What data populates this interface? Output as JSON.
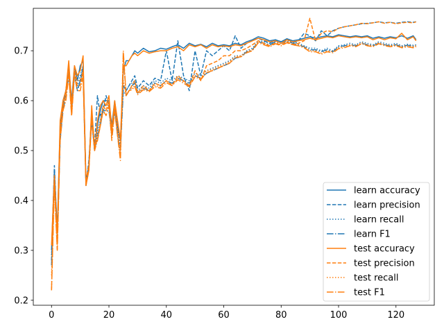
{
  "chart_data": {
    "type": "line",
    "title": "",
    "xlabel": "",
    "ylabel": "",
    "xlim": [
      -6.35,
      133.35
    ],
    "ylim": [
      0.19,
      0.785
    ],
    "xticks": [
      0,
      20,
      40,
      60,
      80,
      100,
      120
    ],
    "yticks": [
      0.2,
      0.3,
      0.4,
      0.5,
      0.6,
      0.7
    ],
    "grid": false,
    "legend_position": "lower-right",
    "colors": {
      "learn": "#1f77b4",
      "test": "#ff7f0e",
      "axes": "#000000",
      "background": "#ffffff"
    },
    "x": [
      0,
      1,
      2,
      3,
      4,
      5,
      6,
      7,
      8,
      9,
      10,
      11,
      12,
      13,
      14,
      15,
      16,
      17,
      18,
      19,
      20,
      21,
      22,
      23,
      24,
      25,
      26,
      27,
      28,
      29,
      30,
      32,
      34,
      36,
      38,
      40,
      42,
      44,
      46,
      48,
      50,
      52,
      54,
      56,
      58,
      60,
      62,
      64,
      66,
      68,
      70,
      72,
      74,
      76,
      78,
      80,
      82,
      84,
      86,
      88,
      90,
      92,
      94,
      96,
      98,
      100,
      102,
      104,
      106,
      108,
      110,
      112,
      114,
      116,
      118,
      120,
      122,
      124,
      126,
      127
    ],
    "series": [
      {
        "name": "learn accuracy",
        "dash": "solid",
        "color": "#1f77b4",
        "values": [
          0.3,
          0.46,
          0.34,
          0.55,
          0.6,
          0.62,
          0.67,
          0.6,
          0.67,
          0.64,
          0.67,
          0.68,
          0.44,
          0.47,
          0.58,
          0.5,
          0.55,
          0.58,
          0.6,
          0.6,
          0.6,
          0.55,
          0.6,
          0.55,
          0.52,
          0.66,
          0.68,
          0.68,
          0.69,
          0.7,
          0.695,
          0.705,
          0.698,
          0.7,
          0.705,
          0.703,
          0.708,
          0.712,
          0.705,
          0.715,
          0.71,
          0.713,
          0.708,
          0.715,
          0.71,
          0.712,
          0.71,
          0.715,
          0.712,
          0.718,
          0.722,
          0.728,
          0.725,
          0.72,
          0.722,
          0.718,
          0.724,
          0.72,
          0.722,
          0.725,
          0.728,
          0.725,
          0.728,
          0.73,
          0.728,
          0.732,
          0.73,
          0.728,
          0.73,
          0.728,
          0.73,
          0.725,
          0.728,
          0.725,
          0.728,
          0.726,
          0.73,
          0.725,
          0.73,
          0.722
        ]
      },
      {
        "name": "learn precision",
        "dash": "dashed",
        "color": "#1f77b4",
        "values": [
          0.28,
          0.47,
          0.33,
          0.52,
          0.59,
          0.62,
          0.66,
          0.58,
          0.66,
          0.62,
          0.64,
          0.67,
          0.43,
          0.48,
          0.56,
          0.51,
          0.61,
          0.57,
          0.58,
          0.61,
          0.59,
          0.55,
          0.58,
          0.54,
          0.52,
          0.63,
          0.62,
          0.63,
          0.64,
          0.65,
          0.625,
          0.64,
          0.63,
          0.645,
          0.64,
          0.7,
          0.64,
          0.72,
          0.65,
          0.62,
          0.7,
          0.65,
          0.7,
          0.69,
          0.7,
          0.71,
          0.7,
          0.73,
          0.705,
          0.715,
          0.72,
          0.725,
          0.72,
          0.715,
          0.722,
          0.718,
          0.724,
          0.716,
          0.72,
          0.735,
          0.73,
          0.72,
          0.74,
          0.73,
          0.74,
          0.745,
          0.748,
          0.75,
          0.752,
          0.754,
          0.755,
          0.756,
          0.758,
          0.756,
          0.757,
          0.755,
          0.757,
          0.758,
          0.757,
          0.758
        ]
      },
      {
        "name": "learn recall",
        "dash": "dotted",
        "color": "#1f77b4",
        "values": [
          0.29,
          0.46,
          0.33,
          0.53,
          0.59,
          0.62,
          0.66,
          0.59,
          0.66,
          0.63,
          0.65,
          0.67,
          0.43,
          0.47,
          0.57,
          0.5,
          0.54,
          0.56,
          0.59,
          0.59,
          0.59,
          0.54,
          0.59,
          0.54,
          0.51,
          0.63,
          0.62,
          0.63,
          0.635,
          0.64,
          0.62,
          0.63,
          0.625,
          0.64,
          0.635,
          0.645,
          0.64,
          0.65,
          0.645,
          0.64,
          0.655,
          0.65,
          0.66,
          0.665,
          0.67,
          0.675,
          0.68,
          0.69,
          0.69,
          0.7,
          0.705,
          0.72,
          0.718,
          0.715,
          0.72,
          0.718,
          0.722,
          0.718,
          0.715,
          0.71,
          0.705,
          0.705,
          0.7,
          0.705,
          0.7,
          0.71,
          0.712,
          0.715,
          0.712,
          0.718,
          0.715,
          0.712,
          0.718,
          0.715,
          0.712,
          0.715,
          0.71,
          0.713,
          0.711,
          0.712
        ]
      },
      {
        "name": "learn F1",
        "dash": "dashdot",
        "color": "#1f77b4",
        "values": [
          0.27,
          0.45,
          0.32,
          0.52,
          0.58,
          0.61,
          0.65,
          0.58,
          0.65,
          0.62,
          0.64,
          0.66,
          0.43,
          0.47,
          0.56,
          0.5,
          0.53,
          0.55,
          0.58,
          0.58,
          0.58,
          0.53,
          0.58,
          0.53,
          0.5,
          0.62,
          0.61,
          0.62,
          0.63,
          0.635,
          0.615,
          0.625,
          0.62,
          0.635,
          0.63,
          0.64,
          0.635,
          0.645,
          0.64,
          0.635,
          0.65,
          0.645,
          0.655,
          0.66,
          0.665,
          0.67,
          0.675,
          0.685,
          0.688,
          0.698,
          0.702,
          0.718,
          0.715,
          0.712,
          0.718,
          0.715,
          0.72,
          0.715,
          0.712,
          0.708,
          0.702,
          0.702,
          0.698,
          0.702,
          0.698,
          0.708,
          0.71,
          0.712,
          0.71,
          0.715,
          0.712,
          0.71,
          0.715,
          0.712,
          0.71,
          0.712,
          0.708,
          0.711,
          0.709,
          0.71
        ]
      },
      {
        "name": "test accuracy",
        "dash": "solid",
        "color": "#ff7f0e",
        "values": [
          0.31,
          0.45,
          0.33,
          0.56,
          0.6,
          0.62,
          0.68,
          0.59,
          0.67,
          0.65,
          0.66,
          0.69,
          0.43,
          0.46,
          0.59,
          0.5,
          0.56,
          0.59,
          0.6,
          0.59,
          0.61,
          0.54,
          0.6,
          0.56,
          0.52,
          0.67,
          0.67,
          0.68,
          0.69,
          0.695,
          0.69,
          0.7,
          0.695,
          0.698,
          0.7,
          0.7,
          0.705,
          0.708,
          0.7,
          0.712,
          0.708,
          0.712,
          0.705,
          0.712,
          0.708,
          0.71,
          0.708,
          0.712,
          0.71,
          0.715,
          0.72,
          0.725,
          0.722,
          0.718,
          0.72,
          0.715,
          0.722,
          0.718,
          0.72,
          0.722,
          0.725,
          0.722,
          0.725,
          0.728,
          0.726,
          0.73,
          0.728,
          0.726,
          0.728,
          0.726,
          0.728,
          0.722,
          0.726,
          0.722,
          0.726,
          0.724,
          0.735,
          0.722,
          0.728,
          0.72
        ]
      },
      {
        "name": "test precision",
        "dash": "dashed",
        "color": "#ff7f0e",
        "values": [
          0.22,
          0.44,
          0.3,
          0.53,
          0.59,
          0.61,
          0.67,
          0.57,
          0.66,
          0.63,
          0.63,
          0.66,
          0.44,
          0.47,
          0.57,
          0.51,
          0.52,
          0.55,
          0.59,
          0.58,
          0.6,
          0.53,
          0.59,
          0.53,
          0.49,
          0.69,
          0.61,
          0.62,
          0.63,
          0.64,
          0.615,
          0.63,
          0.62,
          0.635,
          0.63,
          0.64,
          0.63,
          0.65,
          0.64,
          0.63,
          0.66,
          0.64,
          0.67,
          0.675,
          0.68,
          0.69,
          0.69,
          0.7,
          0.7,
          0.705,
          0.712,
          0.72,
          0.715,
          0.71,
          0.715,
          0.712,
          0.718,
          0.712,
          0.715,
          0.72,
          0.765,
          0.72,
          0.735,
          0.74,
          0.738,
          0.745,
          0.748,
          0.75,
          0.752,
          0.755,
          0.754,
          0.756,
          0.758,
          0.755,
          0.757,
          0.754,
          0.756,
          0.757,
          0.756,
          0.758
        ]
      },
      {
        "name": "test recall",
        "dash": "dotted",
        "color": "#ff7f0e",
        "values": [
          0.25,
          0.44,
          0.31,
          0.54,
          0.59,
          0.61,
          0.66,
          0.58,
          0.66,
          0.64,
          0.64,
          0.66,
          0.43,
          0.46,
          0.57,
          0.5,
          0.53,
          0.56,
          0.59,
          0.58,
          0.59,
          0.53,
          0.59,
          0.54,
          0.5,
          0.64,
          0.61,
          0.62,
          0.625,
          0.63,
          0.615,
          0.625,
          0.62,
          0.63,
          0.628,
          0.64,
          0.632,
          0.645,
          0.638,
          0.63,
          0.65,
          0.645,
          0.66,
          0.662,
          0.668,
          0.672,
          0.678,
          0.688,
          0.69,
          0.698,
          0.702,
          0.718,
          0.714,
          0.71,
          0.716,
          0.712,
          0.718,
          0.714,
          0.712,
          0.708,
          0.7,
          0.7,
          0.695,
          0.7,
          0.698,
          0.706,
          0.708,
          0.712,
          0.71,
          0.716,
          0.712,
          0.71,
          0.716,
          0.712,
          0.71,
          0.712,
          0.708,
          0.71,
          0.708,
          0.71
        ]
      },
      {
        "name": "test F1",
        "dash": "dashdot",
        "color": "#ff7f0e",
        "values": [
          0.22,
          0.43,
          0.3,
          0.52,
          0.58,
          0.6,
          0.65,
          0.57,
          0.65,
          0.62,
          0.62,
          0.65,
          0.43,
          0.46,
          0.56,
          0.5,
          0.52,
          0.55,
          0.58,
          0.57,
          0.59,
          0.52,
          0.58,
          0.53,
          0.48,
          0.7,
          0.61,
          0.62,
          0.622,
          0.628,
          0.612,
          0.622,
          0.618,
          0.628,
          0.625,
          0.636,
          0.63,
          0.642,
          0.635,
          0.628,
          0.648,
          0.642,
          0.656,
          0.66,
          0.665,
          0.67,
          0.675,
          0.686,
          0.688,
          0.696,
          0.7,
          0.716,
          0.712,
          0.708,
          0.714,
          0.71,
          0.716,
          0.712,
          0.71,
          0.706,
          0.698,
          0.698,
          0.693,
          0.698,
          0.696,
          0.704,
          0.706,
          0.71,
          0.708,
          0.714,
          0.71,
          0.708,
          0.714,
          0.71,
          0.708,
          0.71,
          0.706,
          0.708,
          0.706,
          0.708
        ]
      }
    ]
  }
}
